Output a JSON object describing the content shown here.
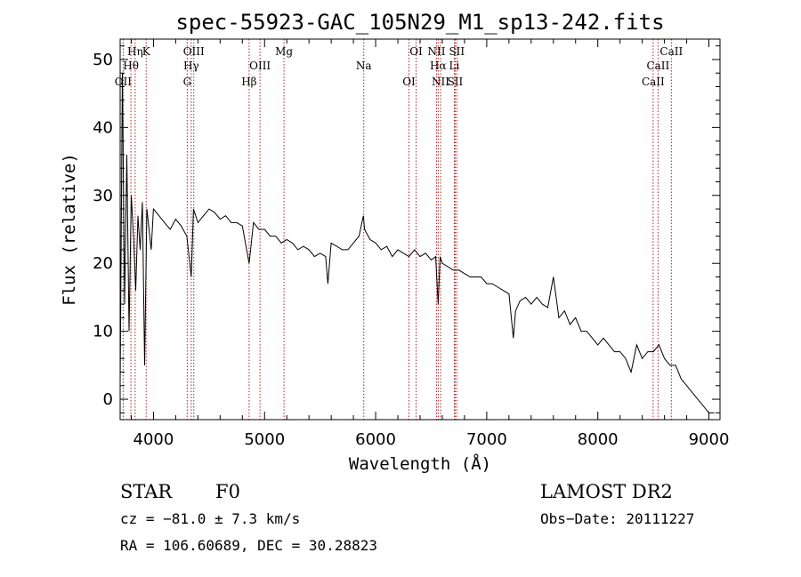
{
  "chart_data": {
    "type": "line",
    "title": "spec-55923-GAC_105N29_M1_sp13-242.fits",
    "xlabel": "Wavelength (Å)",
    "ylabel": "Flux (relative)",
    "xlim": [
      3700,
      9100
    ],
    "ylim": [
      -3,
      53
    ],
    "xticks": [
      4000,
      5000,
      6000,
      7000,
      8000,
      9000
    ],
    "yticks": [
      0,
      10,
      20,
      30,
      40,
      50
    ],
    "series": [
      {
        "x": [
          3700,
          3720,
          3740,
          3760,
          3780,
          3800,
          3820,
          3840,
          3860,
          3880,
          3900,
          3920,
          3940,
          3960,
          3980,
          4000,
          4050,
          4100,
          4150,
          4200,
          4250,
          4300,
          4340,
          4360,
          4400,
          4450,
          4500,
          4550,
          4600,
          4650,
          4700,
          4750,
          4800,
          4861,
          4900,
          4950,
          5000,
          5050,
          5100,
          5150,
          5200,
          5250,
          5300,
          5350,
          5400,
          5450,
          5500,
          5550,
          5570,
          5600,
          5650,
          5700,
          5750,
          5800,
          5850,
          5890,
          5900,
          5950,
          6000,
          6050,
          6100,
          6150,
          6200,
          6250,
          6300,
          6350,
          6400,
          6450,
          6500,
          6540,
          6563,
          6580,
          6600,
          6650,
          6700,
          6750,
          6800,
          6850,
          6900,
          6950,
          7000,
          7050,
          7100,
          7150,
          7200,
          7240,
          7260,
          7300,
          7350,
          7400,
          7450,
          7500,
          7550,
          7600,
          7650,
          7700,
          7750,
          7800,
          7850,
          7900,
          7950,
          8000,
          8050,
          8100,
          8150,
          8200,
          8250,
          8300,
          8350,
          8400,
          8450,
          8500,
          8550,
          8600,
          8650,
          8700,
          8750,
          8800,
          8850,
          8900,
          8950,
          9000,
          9050
        ],
        "y": [
          2,
          48,
          14,
          36,
          10,
          30,
          24,
          16,
          27,
          22,
          29,
          5,
          28,
          25,
          22,
          28,
          27,
          26,
          25,
          26.5,
          25.5,
          24,
          18,
          28,
          26,
          27,
          28,
          27.5,
          26.5,
          27,
          26,
          26,
          25.5,
          20,
          26,
          25,
          25,
          24,
          24,
          23,
          23.5,
          23,
          22,
          22.5,
          22,
          21,
          21.5,
          21,
          17,
          23,
          22.5,
          22,
          22,
          23,
          24,
          27,
          25,
          23.5,
          23,
          22,
          22.5,
          21,
          22,
          21.5,
          21,
          22,
          21,
          21.5,
          20.5,
          21,
          14,
          21,
          20,
          19.5,
          19,
          19,
          18.5,
          18,
          18,
          18,
          17,
          17,
          16.5,
          16,
          15.5,
          9,
          13,
          14.5,
          15,
          14,
          15,
          14,
          13.5,
          18,
          12,
          13,
          11,
          12,
          10,
          10,
          9,
          8,
          9,
          8,
          7,
          7,
          6,
          4,
          8,
          6,
          7,
          7,
          8,
          6,
          5,
          5,
          3,
          2,
          1,
          0,
          -1,
          -2,
          -2
        ]
      }
    ],
    "spectral_lines": [
      {
        "label": "Hη",
        "wavelength": 3835
      },
      {
        "label": "Hθ",
        "wavelength": 3797
      },
      {
        "label": "OII",
        "wavelength": 3727
      },
      {
        "label": "K",
        "wavelength": 3934
      },
      {
        "label": "Hγ",
        "wavelength": 4340
      },
      {
        "label": "G",
        "wavelength": 4304
      },
      {
        "label": "OIII",
        "wavelength": 4363
      },
      {
        "label": "OIII",
        "wavelength": 4959
      },
      {
        "label": "Hβ",
        "wavelength": 4861
      },
      {
        "label": "Mg",
        "wavelength": 5175
      },
      {
        "label": "Na",
        "wavelength": 5893
      },
      {
        "label": "OI",
        "wavelength": 6300
      },
      {
        "label": "OI",
        "wavelength": 6364
      },
      {
        "label": "Hα",
        "wavelength": 6563
      },
      {
        "label": "SII",
        "wavelength": 6716
      },
      {
        "label": "NII",
        "wavelength": 6548
      },
      {
        "label": "Li",
        "wavelength": 6708
      },
      {
        "label": "NII",
        "wavelength": 6584
      },
      {
        "label": "SII",
        "wavelength": 6731
      },
      {
        "label": "CaII",
        "wavelength": 8542
      },
      {
        "label": "CaII",
        "wavelength": 8498
      },
      {
        "label": "CaII",
        "wavelength": 8662
      }
    ],
    "grid": false
  },
  "footer": {
    "class_label": "STAR",
    "subclass_label": "F0",
    "survey": "LAMOST DR2",
    "cz": "cz = −81.0 ± 7.3 km/s",
    "obs_date": "Obs−Date: 20111227",
    "radec": "RA = 106.60689, DEC =  30.28823"
  },
  "colors": {
    "line_marker": "#b02020",
    "spectrum": "#000000"
  }
}
